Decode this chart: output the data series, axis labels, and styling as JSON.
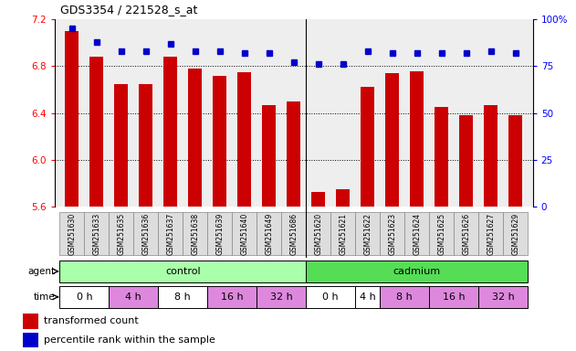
{
  "title": "GDS3354 / 221528_s_at",
  "samples": [
    "GSM251630",
    "GSM251633",
    "GSM251635",
    "GSM251636",
    "GSM251637",
    "GSM251638",
    "GSM251639",
    "GSM251640",
    "GSM251649",
    "GSM251686",
    "GSM251620",
    "GSM251621",
    "GSM251622",
    "GSM251623",
    "GSM251624",
    "GSM251625",
    "GSM251626",
    "GSM251627",
    "GSM251629"
  ],
  "bar_values": [
    7.1,
    6.88,
    6.65,
    6.65,
    6.88,
    6.78,
    6.72,
    6.75,
    6.47,
    6.5,
    5.73,
    5.75,
    6.62,
    6.74,
    6.76,
    6.45,
    6.38,
    6.47,
    6.38
  ],
  "percentile_values": [
    95,
    88,
    83,
    83,
    87,
    83,
    83,
    82,
    82,
    77,
    76,
    76,
    83,
    82,
    82,
    82,
    82,
    83,
    82
  ],
  "bar_color": "#cc0000",
  "dot_color": "#0000cc",
  "ylim_left": [
    5.6,
    7.2
  ],
  "ylim_right": [
    0,
    100
  ],
  "yticks_left": [
    5.6,
    6.0,
    6.4,
    6.8,
    7.2
  ],
  "yticks_right": [
    0,
    25,
    50,
    75,
    100
  ],
  "control_color": "#aaffaa",
  "cadmium_color": "#55dd55",
  "time_white": "#ffffff",
  "time_pink": "#dd88dd",
  "agent_groups": [
    {
      "label": "control",
      "start": 0,
      "end": 10,
      "color": "#aaffaa"
    },
    {
      "label": "cadmium",
      "start": 10,
      "end": 19,
      "color": "#55dd55"
    }
  ],
  "time_groups": [
    {
      "label": "0 h",
      "start": 0,
      "end": 2,
      "color": "#ffffff"
    },
    {
      "label": "4 h",
      "start": 2,
      "end": 4,
      "color": "#dd88dd"
    },
    {
      "label": "8 h",
      "start": 4,
      "end": 6,
      "color": "#ffffff"
    },
    {
      "label": "16 h",
      "start": 6,
      "end": 8,
      "color": "#dd88dd"
    },
    {
      "label": "32 h",
      "start": 8,
      "end": 10,
      "color": "#dd88dd"
    },
    {
      "label": "0 h",
      "start": 10,
      "end": 12,
      "color": "#ffffff"
    },
    {
      "label": "4 h",
      "start": 12,
      "end": 13,
      "color": "#ffffff"
    },
    {
      "label": "8 h",
      "start": 13,
      "end": 15,
      "color": "#dd88dd"
    },
    {
      "label": "16 h",
      "start": 15,
      "end": 17,
      "color": "#dd88dd"
    },
    {
      "label": "32 h",
      "start": 17,
      "end": 19,
      "color": "#dd88dd"
    }
  ],
  "legend_bar_label": "transformed count",
  "legend_dot_label": "percentile rank within the sample",
  "agent_label": "agent",
  "time_label": "time",
  "background_color": "#ffffff",
  "chart_bg": "#eeeeee",
  "bar_width": 0.55
}
